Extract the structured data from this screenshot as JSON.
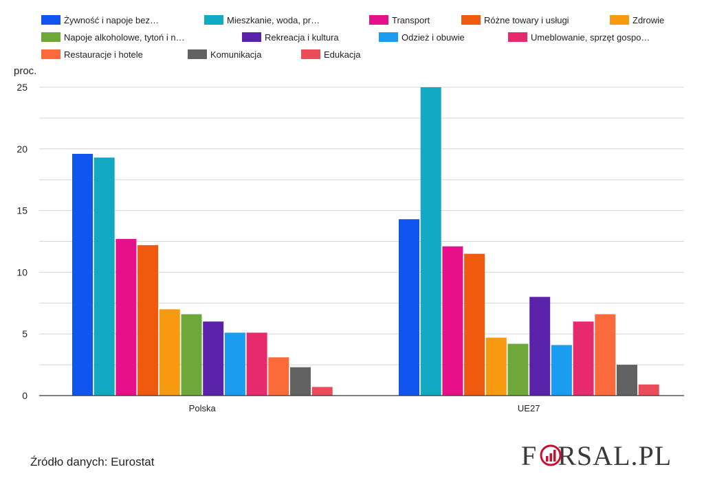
{
  "chart_data": {
    "type": "bar",
    "unit_label": "proc.",
    "categories": [
      "Polska",
      "UE27"
    ],
    "ylim": [
      0,
      25
    ],
    "yticks": [
      0,
      5,
      10,
      15,
      20,
      25
    ],
    "grid": true,
    "legend_position": "top",
    "series": [
      {
        "name": "Żywność i napoje bez…",
        "color": "#1155f0",
        "values": [
          19.6,
          14.3
        ]
      },
      {
        "name": "Mieszkanie, woda, pr…",
        "color": "#12a9c4",
        "values": [
          19.3,
          25.0
        ]
      },
      {
        "name": "Transport",
        "color": "#e8108a",
        "values": [
          12.7,
          12.1
        ]
      },
      {
        "name": "Różne towary i usługi",
        "color": "#f05a0f",
        "values": [
          12.2,
          11.5
        ]
      },
      {
        "name": "Zdrowie",
        "color": "#f89a10",
        "values": [
          7.0,
          4.7
        ]
      },
      {
        "name": "Napoje alkoholowe, tytoń i n…",
        "color": "#6ea83a",
        "values": [
          6.6,
          4.2
        ]
      },
      {
        "name": "Rekreacja i kultura",
        "color": "#5a22a8",
        "values": [
          6.0,
          8.0
        ]
      },
      {
        "name": "Odzież i obuwie",
        "color": "#1a9cf0",
        "values": [
          5.1,
          4.1
        ]
      },
      {
        "name": "Umeblowanie, sprzęt gospo…",
        "color": "#e62a6c",
        "values": [
          5.1,
          6.0
        ]
      },
      {
        "name": "Restauracje i hotele",
        "color": "#fb6a3a",
        "values": [
          3.1,
          6.6
        ]
      },
      {
        "name": "Komunikacja",
        "color": "#626262",
        "values": [
          2.3,
          2.5
        ]
      },
      {
        "name": "Edukacja",
        "color": "#ea4c5a",
        "values": [
          0.7,
          0.9
        ]
      }
    ]
  },
  "footer": {
    "source": "Źródło danych: Eurostat",
    "logo": "FORSAL.PL"
  }
}
